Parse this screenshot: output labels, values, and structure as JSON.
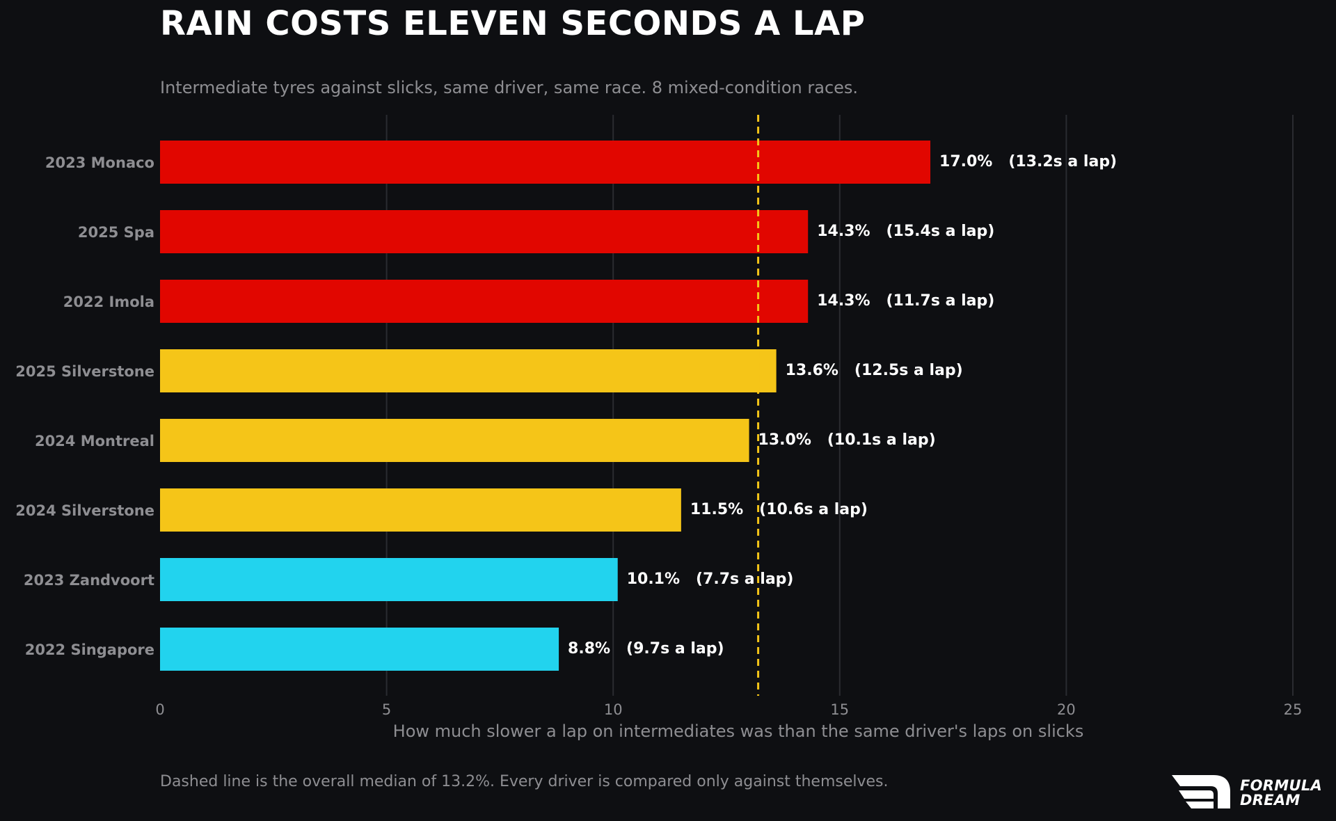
{
  "header": {
    "title": "RAIN COSTS ELEVEN SECONDS A LAP",
    "subtitle": "Intermediate tyres against slicks, same driver, same race. 8 mixed-condition races."
  },
  "footer": {
    "note": "Dashed line is the overall median of 13.2%. Every driver is compared only against themselves.",
    "brand_line1": "FORMULA",
    "brand_line2": "DREAM"
  },
  "colors": {
    "background": "#0e0f12",
    "high": "#e10600",
    "mid": "#f5c518",
    "low": "#22d3ee",
    "median_line": "#f5c518",
    "grid": "#2a2b30",
    "muted_text": "#8e8e92"
  },
  "chart_data": {
    "type": "bar",
    "orientation": "horizontal",
    "xlabel": "How much slower a lap on intermediates was than the same driver's laps on slicks",
    "ylabel": "",
    "xlim": [
      0,
      25
    ],
    "xticks": [
      0,
      5,
      10,
      15,
      20,
      25
    ],
    "grid": "vertical",
    "median": 13.2,
    "categories": [
      "2023 Monaco",
      "2025 Spa",
      "2022 Imola",
      "2025 Silverstone",
      "2024 Montreal",
      "2024 Silverstone",
      "2023 Zandvoort",
      "2022 Singapore"
    ],
    "values": [
      17.0,
      14.3,
      14.3,
      13.6,
      13.0,
      11.5,
      10.1,
      8.8
    ],
    "labels": [
      "17.0%   (13.2s a lap)",
      "14.3%   (15.4s a lap)",
      "14.3%   (11.7s a lap)",
      "13.6%   (12.5s a lap)",
      "13.0%   (10.1s a lap)",
      "11.5%   (10.6s a lap)",
      "10.1%   (7.7s a lap)",
      "8.8%   (9.7s a lap)"
    ],
    "bar_colors": [
      "#e10600",
      "#e10600",
      "#e10600",
      "#f5c518",
      "#f5c518",
      "#f5c518",
      "#22d3ee",
      "#22d3ee"
    ]
  }
}
